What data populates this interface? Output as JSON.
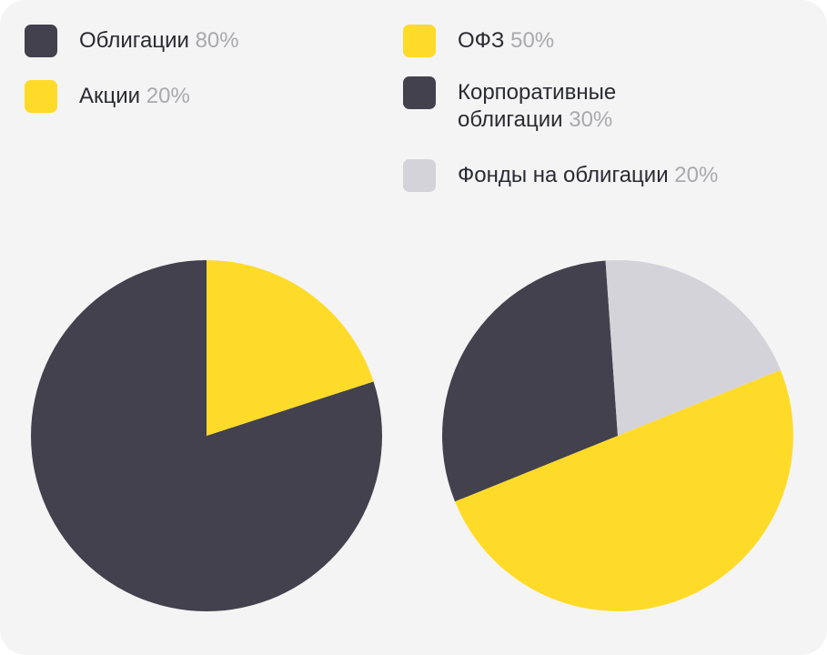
{
  "chart_data": [
    {
      "type": "pie",
      "categories": [
        "Облигации",
        "Акции"
      ],
      "values": [
        80,
        20
      ],
      "value_labels": [
        "80%",
        "20%"
      ],
      "colors": [
        "#42414d",
        "#ffdb29"
      ]
    },
    {
      "type": "pie",
      "categories": [
        "ОФЗ",
        "Корпоративные облигации",
        "Фонды на облигации"
      ],
      "values": [
        50,
        30,
        20
      ],
      "value_labels": [
        "50%",
        "30%",
        "20%"
      ],
      "colors": [
        "#ffdb29",
        "#42414d",
        "#d5d3da"
      ]
    }
  ]
}
